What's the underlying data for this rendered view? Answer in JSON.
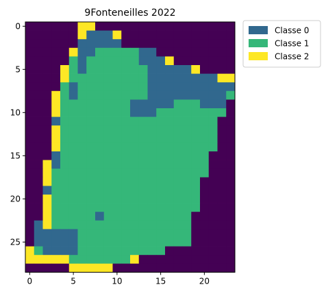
{
  "chart_data": {
    "type": "heatmap",
    "title": "9Fonteneilles 2022",
    "xlabel": "",
    "ylabel": "",
    "x_ticks": [
      0,
      5,
      10,
      15,
      20
    ],
    "y_ticks": [
      0,
      5,
      10,
      15,
      20,
      25
    ],
    "xlim": [
      -0.5,
      23.5
    ],
    "ylim": [
      28.5,
      -0.5
    ],
    "grid": false,
    "legend_position": "outside-top-right",
    "colors": {
      "background": "#440154",
      "classe_0": "#31688e",
      "classe_1": "#35b779",
      "classe_2": "#fde725"
    },
    "legend": [
      {
        "label": "Classe 0",
        "color": "#31688e"
      },
      {
        "label": "Classe 1",
        "color": "#35b779"
      },
      {
        "label": "Classe 2",
        "color": "#fde725"
      }
    ],
    "grid_rows": [
      "......22................",
      "......211.2.............",
      "......111...............",
      ".....2111111112.........",
      ".....111111111112.......",
      "....21111111111111.2....",
      "....21111111111111111122",
      "....11111111111111111111",
      "...211111111111111111111",
      "...2111111111111111111..",
      "...21111111111111111111.",
      "...1111111111111111111..",
      "...2111111111111111111..",
      "...2111111111111111111..",
      "...2111111111111111111..",
      "...211111111111111111...",
      "..2111111111111111111...",
      "..2111111111111111111...",
      "..211111111111111111....",
      "..211111111111111111....",
      "..211111111111111111....",
      "..211111111111111111....",
      "..21111111111111111.....",
      "..21111111111111111.....",
      "..11111111111111111.....",
      "..11111111111111111.....",
      "2111111111111111........",
      "2222211111112...........",
      ".....22222.............."
    ],
    "blue_cells": [
      [
        1,
        7
      ],
      [
        1,
        8
      ],
      [
        1,
        9
      ],
      [
        2,
        6
      ],
      [
        2,
        7
      ],
      [
        2,
        8
      ],
      [
        2,
        9
      ],
      [
        2,
        10
      ],
      [
        3,
        6
      ],
      [
        3,
        7
      ],
      [
        3,
        13
      ],
      [
        3,
        14
      ],
      [
        4,
        6
      ],
      [
        4,
        13
      ],
      [
        4,
        14
      ],
      [
        4,
        15
      ],
      [
        5,
        6
      ],
      [
        5,
        14
      ],
      [
        5,
        15
      ],
      [
        5,
        16
      ],
      [
        5,
        17
      ],
      [
        5,
        18
      ],
      [
        6,
        14
      ],
      [
        6,
        15
      ],
      [
        6,
        16
      ],
      [
        6,
        17
      ],
      [
        6,
        18
      ],
      [
        6,
        19
      ],
      [
        6,
        20
      ],
      [
        6,
        21
      ],
      [
        7,
        5
      ],
      [
        7,
        14
      ],
      [
        7,
        15
      ],
      [
        7,
        16
      ],
      [
        7,
        17
      ],
      [
        7,
        18
      ],
      [
        7,
        19
      ],
      [
        7,
        20
      ],
      [
        7,
        21
      ],
      [
        7,
        22
      ],
      [
        7,
        23
      ],
      [
        8,
        5
      ],
      [
        8,
        14
      ],
      [
        8,
        15
      ],
      [
        8,
        16
      ],
      [
        8,
        17
      ],
      [
        8,
        18
      ],
      [
        8,
        19
      ],
      [
        8,
        20
      ],
      [
        8,
        21
      ],
      [
        8,
        22
      ],
      [
        9,
        12
      ],
      [
        9,
        13
      ],
      [
        9,
        14
      ],
      [
        9,
        15
      ],
      [
        9,
        16
      ],
      [
        9,
        20
      ],
      [
        9,
        21
      ],
      [
        9,
        22
      ],
      [
        10,
        12
      ],
      [
        10,
        13
      ],
      [
        10,
        14
      ],
      [
        11,
        3
      ],
      [
        15,
        3
      ],
      [
        16,
        3
      ],
      [
        19,
        2
      ],
      [
        22,
        8
      ],
      [
        23,
        1
      ],
      [
        24,
        1
      ],
      [
        24,
        2
      ],
      [
        24,
        3
      ],
      [
        24,
        4
      ],
      [
        24,
        5
      ],
      [
        25,
        1
      ],
      [
        25,
        2
      ],
      [
        25,
        3
      ],
      [
        25,
        4
      ],
      [
        25,
        5
      ],
      [
        26,
        2
      ],
      [
        26,
        3
      ],
      [
        26,
        4
      ],
      [
        26,
        5
      ]
    ]
  }
}
